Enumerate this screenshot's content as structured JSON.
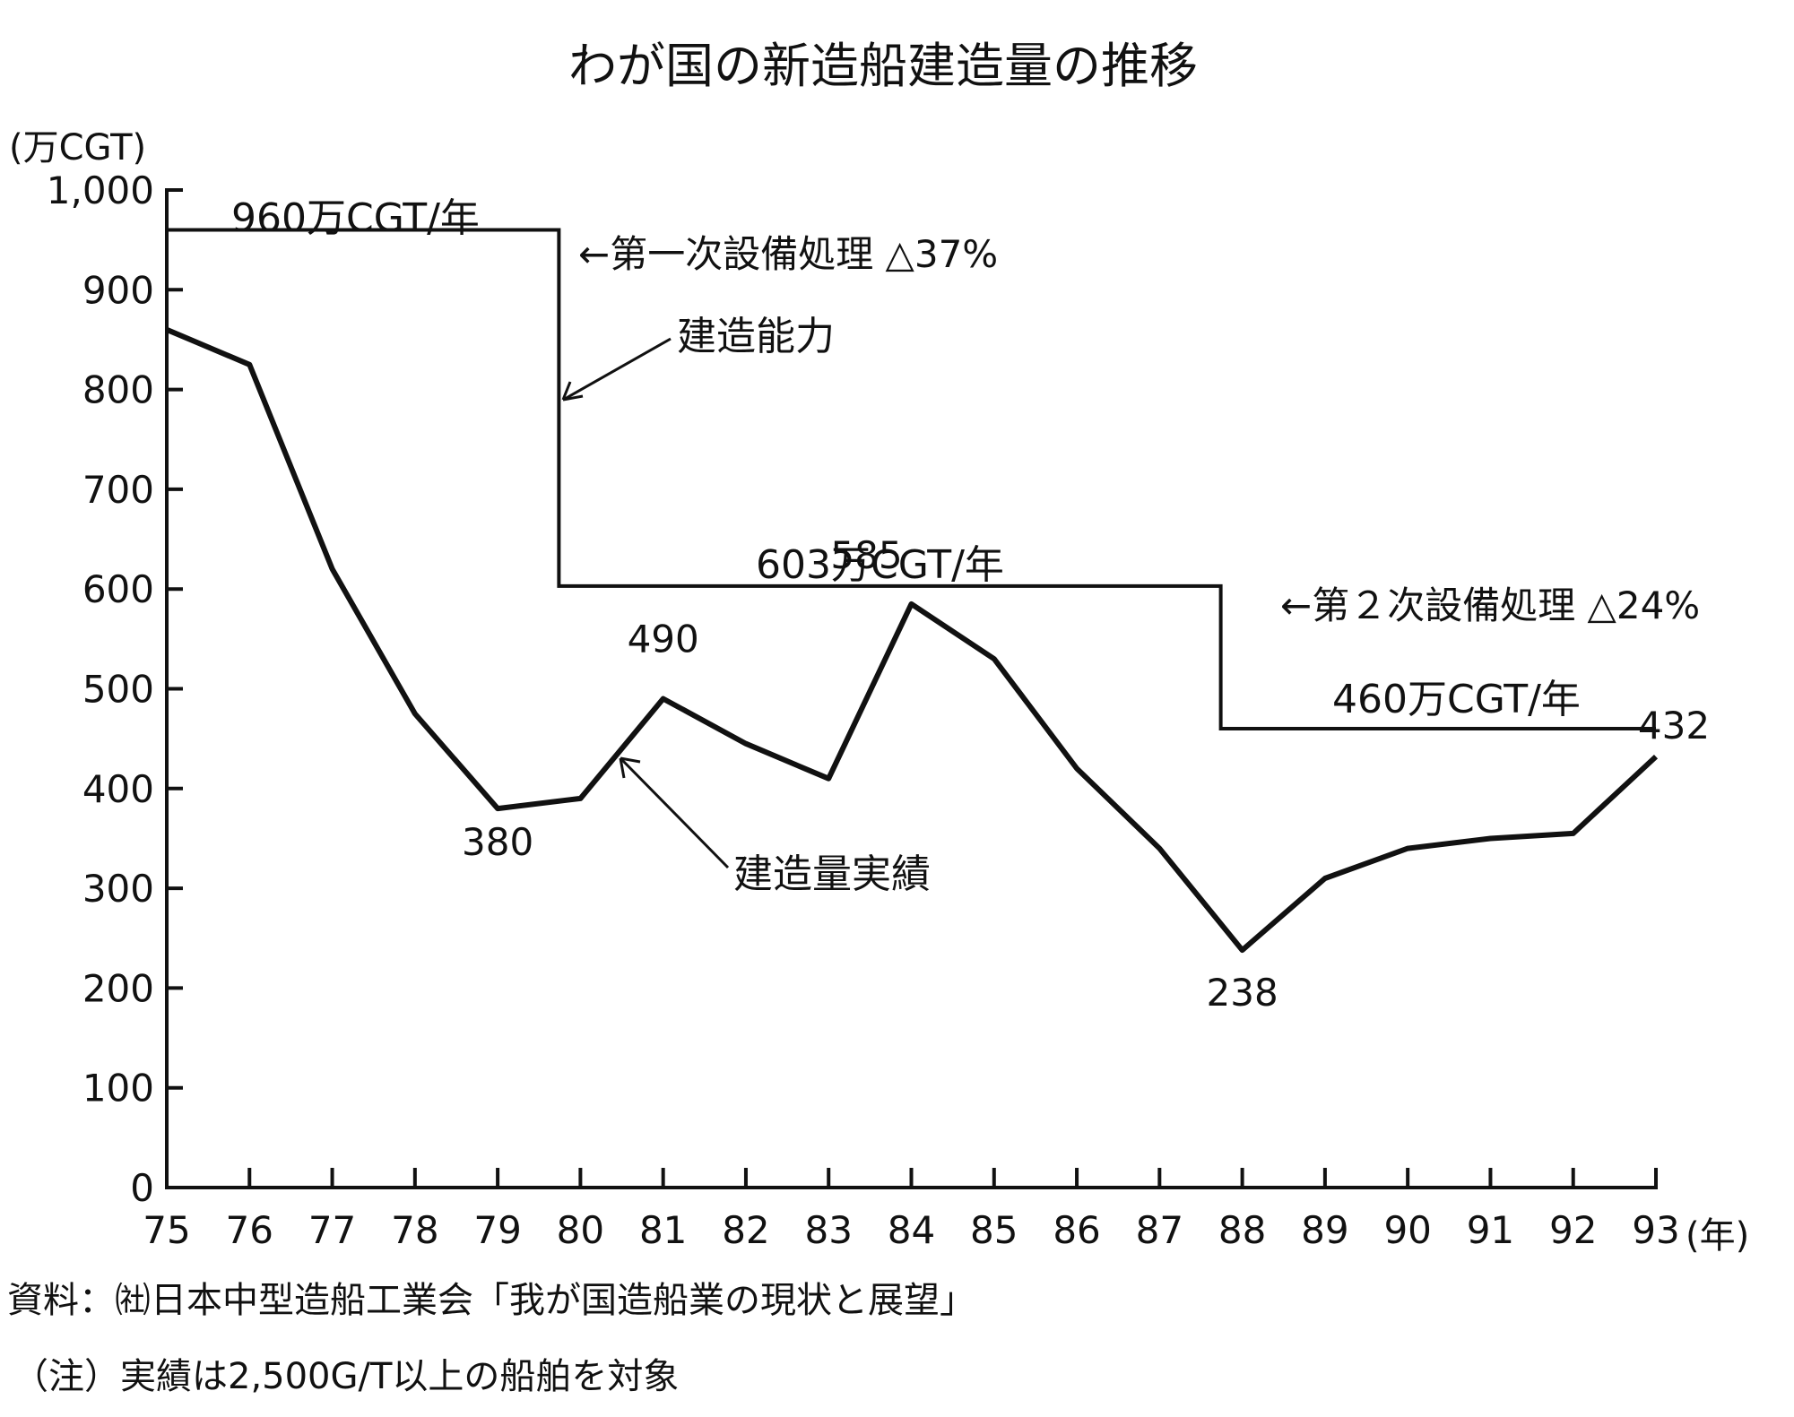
{
  "chart_data": {
    "type": "line",
    "title": "わが国の新造船建造量の推移",
    "ylabel": "(万CGT)",
    "xlabel": "(年)",
    "ylim": [
      0,
      1000
    ],
    "yticks": [
      "0",
      "100",
      "200",
      "300",
      "400",
      "500",
      "600",
      "700",
      "800",
      "900",
      "1,000"
    ],
    "x": [
      "75",
      "76",
      "77",
      "78",
      "79",
      "80",
      "81",
      "82",
      "83",
      "84",
      "85",
      "86",
      "87",
      "88",
      "89",
      "90",
      "91",
      "92",
      "93"
    ],
    "series": [
      {
        "name": "建造量実績",
        "values": [
          860,
          825,
          620,
          475,
          380,
          390,
          490,
          445,
          410,
          585,
          530,
          420,
          340,
          238,
          310,
          340,
          350,
          355,
          432
        ]
      },
      {
        "name": "建造能力",
        "values": [
          960,
          960,
          960,
          960,
          960,
          603,
          603,
          603,
          603,
          603,
          603,
          603,
          603,
          460,
          460,
          460,
          460,
          460,
          460
        ],
        "shape": "step"
      }
    ],
    "data_labels": [
      {
        "x": "79",
        "text": "380"
      },
      {
        "x": "81",
        "text": "490"
      },
      {
        "x": "84",
        "text": "585"
      },
      {
        "x": "88",
        "text": "238"
      },
      {
        "x": "93",
        "text": "432"
      }
    ],
    "annotations": {
      "cap1": "960万CGT/年",
      "cap2": "603万CGT/年",
      "cap3": "460万CGT/年",
      "event1": "←第一次設備処理 △37%",
      "event2": "←第２次設備処理 △24%",
      "capacity_label": "建造能力",
      "actual_label": "建造量実績"
    }
  },
  "notes": {
    "source": "資料：㈳日本中型造船工業会「我が国造船業の現状と展望」",
    "remark": "（注）実績は2,500G/T以上の船舶を対象"
  }
}
